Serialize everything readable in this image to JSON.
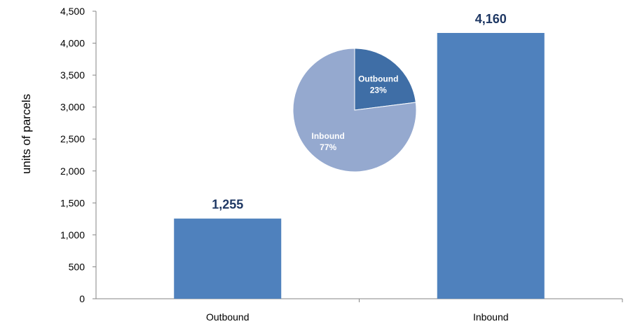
{
  "chart_data": [
    {
      "type": "bar",
      "categories": [
        "Outbound",
        "Inbound"
      ],
      "values": [
        1255,
        4160
      ],
      "data_labels": [
        "1,255",
        "4,160"
      ],
      "ylabel": "units of parcels",
      "xlabel": "",
      "title": "",
      "ylim": [
        0,
        4500
      ],
      "y_ticks": [
        0,
        500,
        1000,
        1500,
        2000,
        2500,
        3000,
        3500,
        4000,
        4500
      ],
      "y_tick_labels": [
        "0",
        "500",
        "1,000",
        "1,500",
        "2,000",
        "2,500",
        "3,000",
        "3,500",
        "4,000",
        "4,500"
      ],
      "grid": false,
      "colors": {
        "bar": "#4f81bd",
        "data_label": "#1f3864",
        "axis": "#868686",
        "tick_text": "#000000"
      }
    },
    {
      "type": "pie",
      "slices": [
        {
          "label": "Outbound",
          "value": 23,
          "value_label": "23%",
          "color": "#3f6ea6"
        },
        {
          "label": "Inbound",
          "value": 77,
          "value_label": "77%",
          "color": "#95a9cf"
        }
      ],
      "start": "12 o'clock",
      "direction": "clockwise",
      "label_color": "#ffffff"
    }
  ]
}
